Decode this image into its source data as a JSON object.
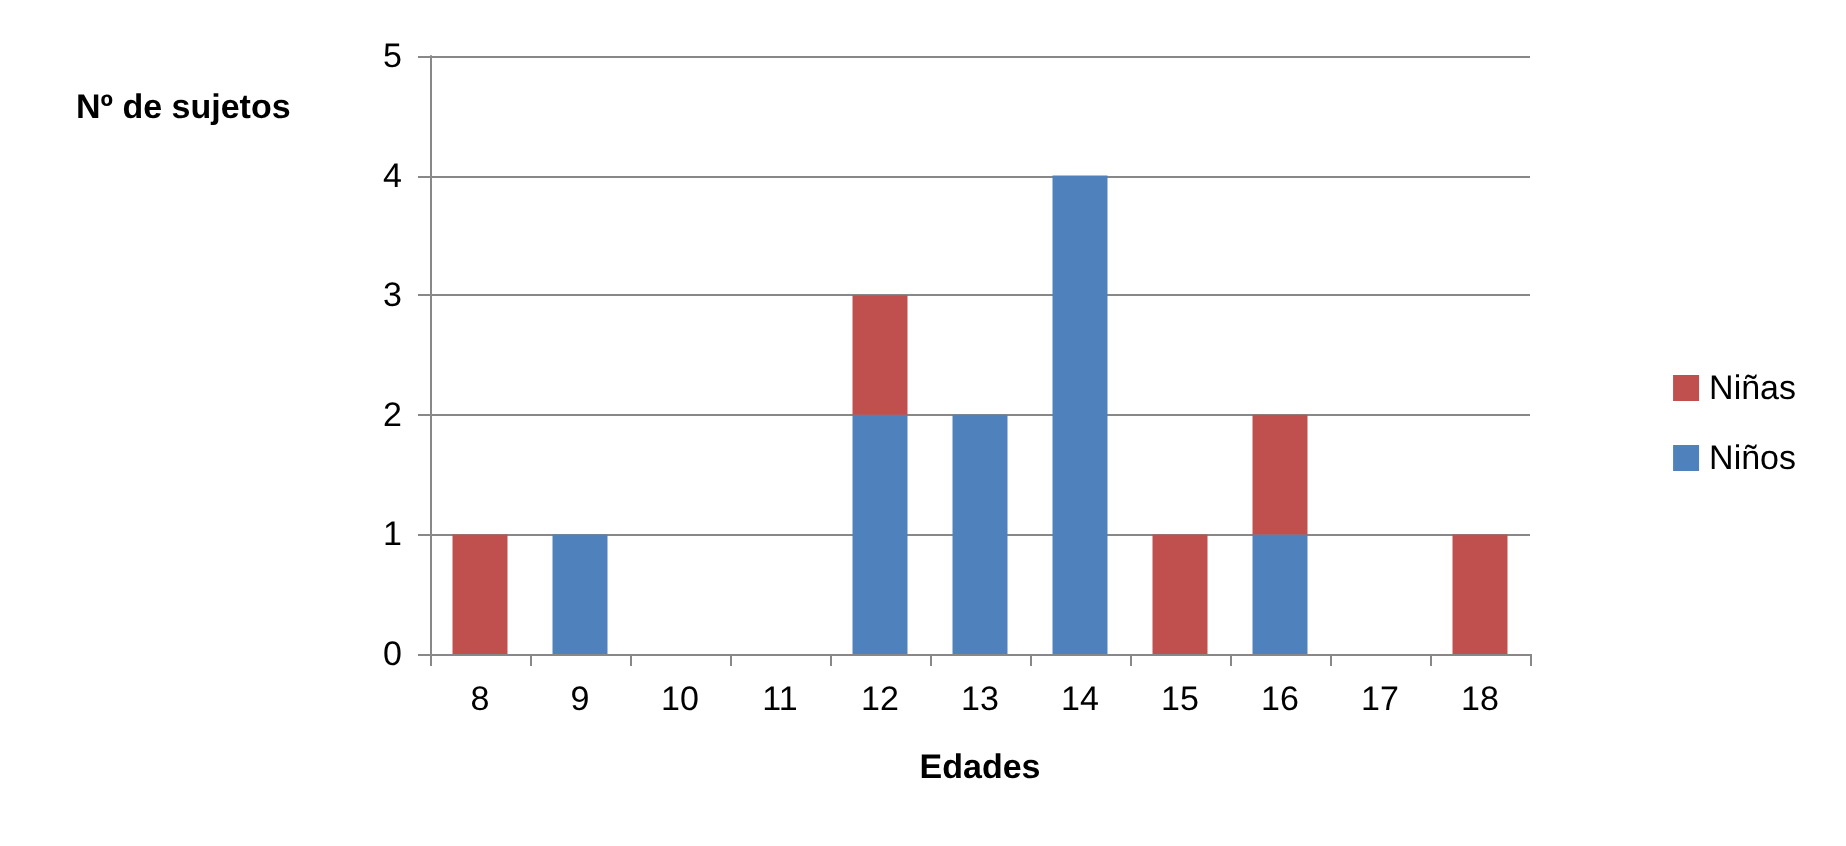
{
  "chart_data": {
    "type": "bar",
    "stacked": true,
    "xlabel": "Edades",
    "ylabel": "Nº de sujetos",
    "categories": [
      "8",
      "9",
      "10",
      "11",
      "12",
      "13",
      "14",
      "15",
      "16",
      "17",
      "18"
    ],
    "series": [
      {
        "name": "Niños",
        "color": "#4f81bd",
        "values": [
          0,
          1,
          0,
          0,
          2,
          2,
          4,
          0,
          1,
          0,
          0
        ]
      },
      {
        "name": "Niñas",
        "color": "#c0504d",
        "values": [
          1,
          0,
          0,
          0,
          1,
          0,
          0,
          1,
          1,
          0,
          1
        ]
      }
    ],
    "ylim": [
      0,
      5
    ],
    "yticks": [
      0,
      1,
      2,
      3,
      4,
      5
    ],
    "grid": "y",
    "legend": "right"
  }
}
